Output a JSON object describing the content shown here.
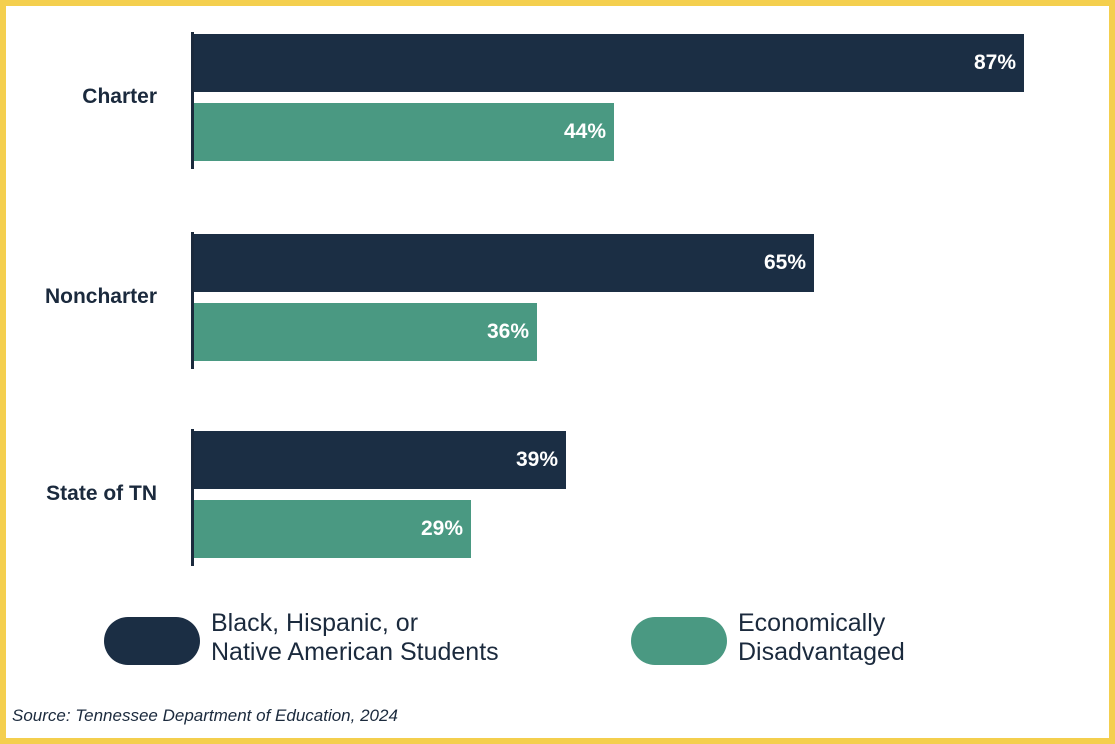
{
  "chart_data": {
    "type": "bar",
    "orientation": "horizontal",
    "categories": [
      "Charter",
      "Noncharter",
      "State of TN"
    ],
    "series": [
      {
        "name": "Black, Hispanic, or Native American Students",
        "values": [
          87,
          65,
          39
        ],
        "labels": [
          "87%",
          "65%",
          "39%"
        ],
        "color": "#1B2E44"
      },
      {
        "name": "Economically Disadvantaged",
        "values": [
          44,
          36,
          29
        ],
        "labels": [
          "44%",
          "36%",
          "29%"
        ],
        "color": "#4A9982"
      }
    ],
    "xlim": [
      0,
      100
    ],
    "grid": false,
    "legend_position": "bottom",
    "source": "Source: Tennessee Department of Education, 2024"
  },
  "legend": {
    "items": [
      {
        "label": "Black, Hispanic, or\nNative American Students"
      },
      {
        "label": "Economically\nDisadvantaged"
      }
    ]
  }
}
